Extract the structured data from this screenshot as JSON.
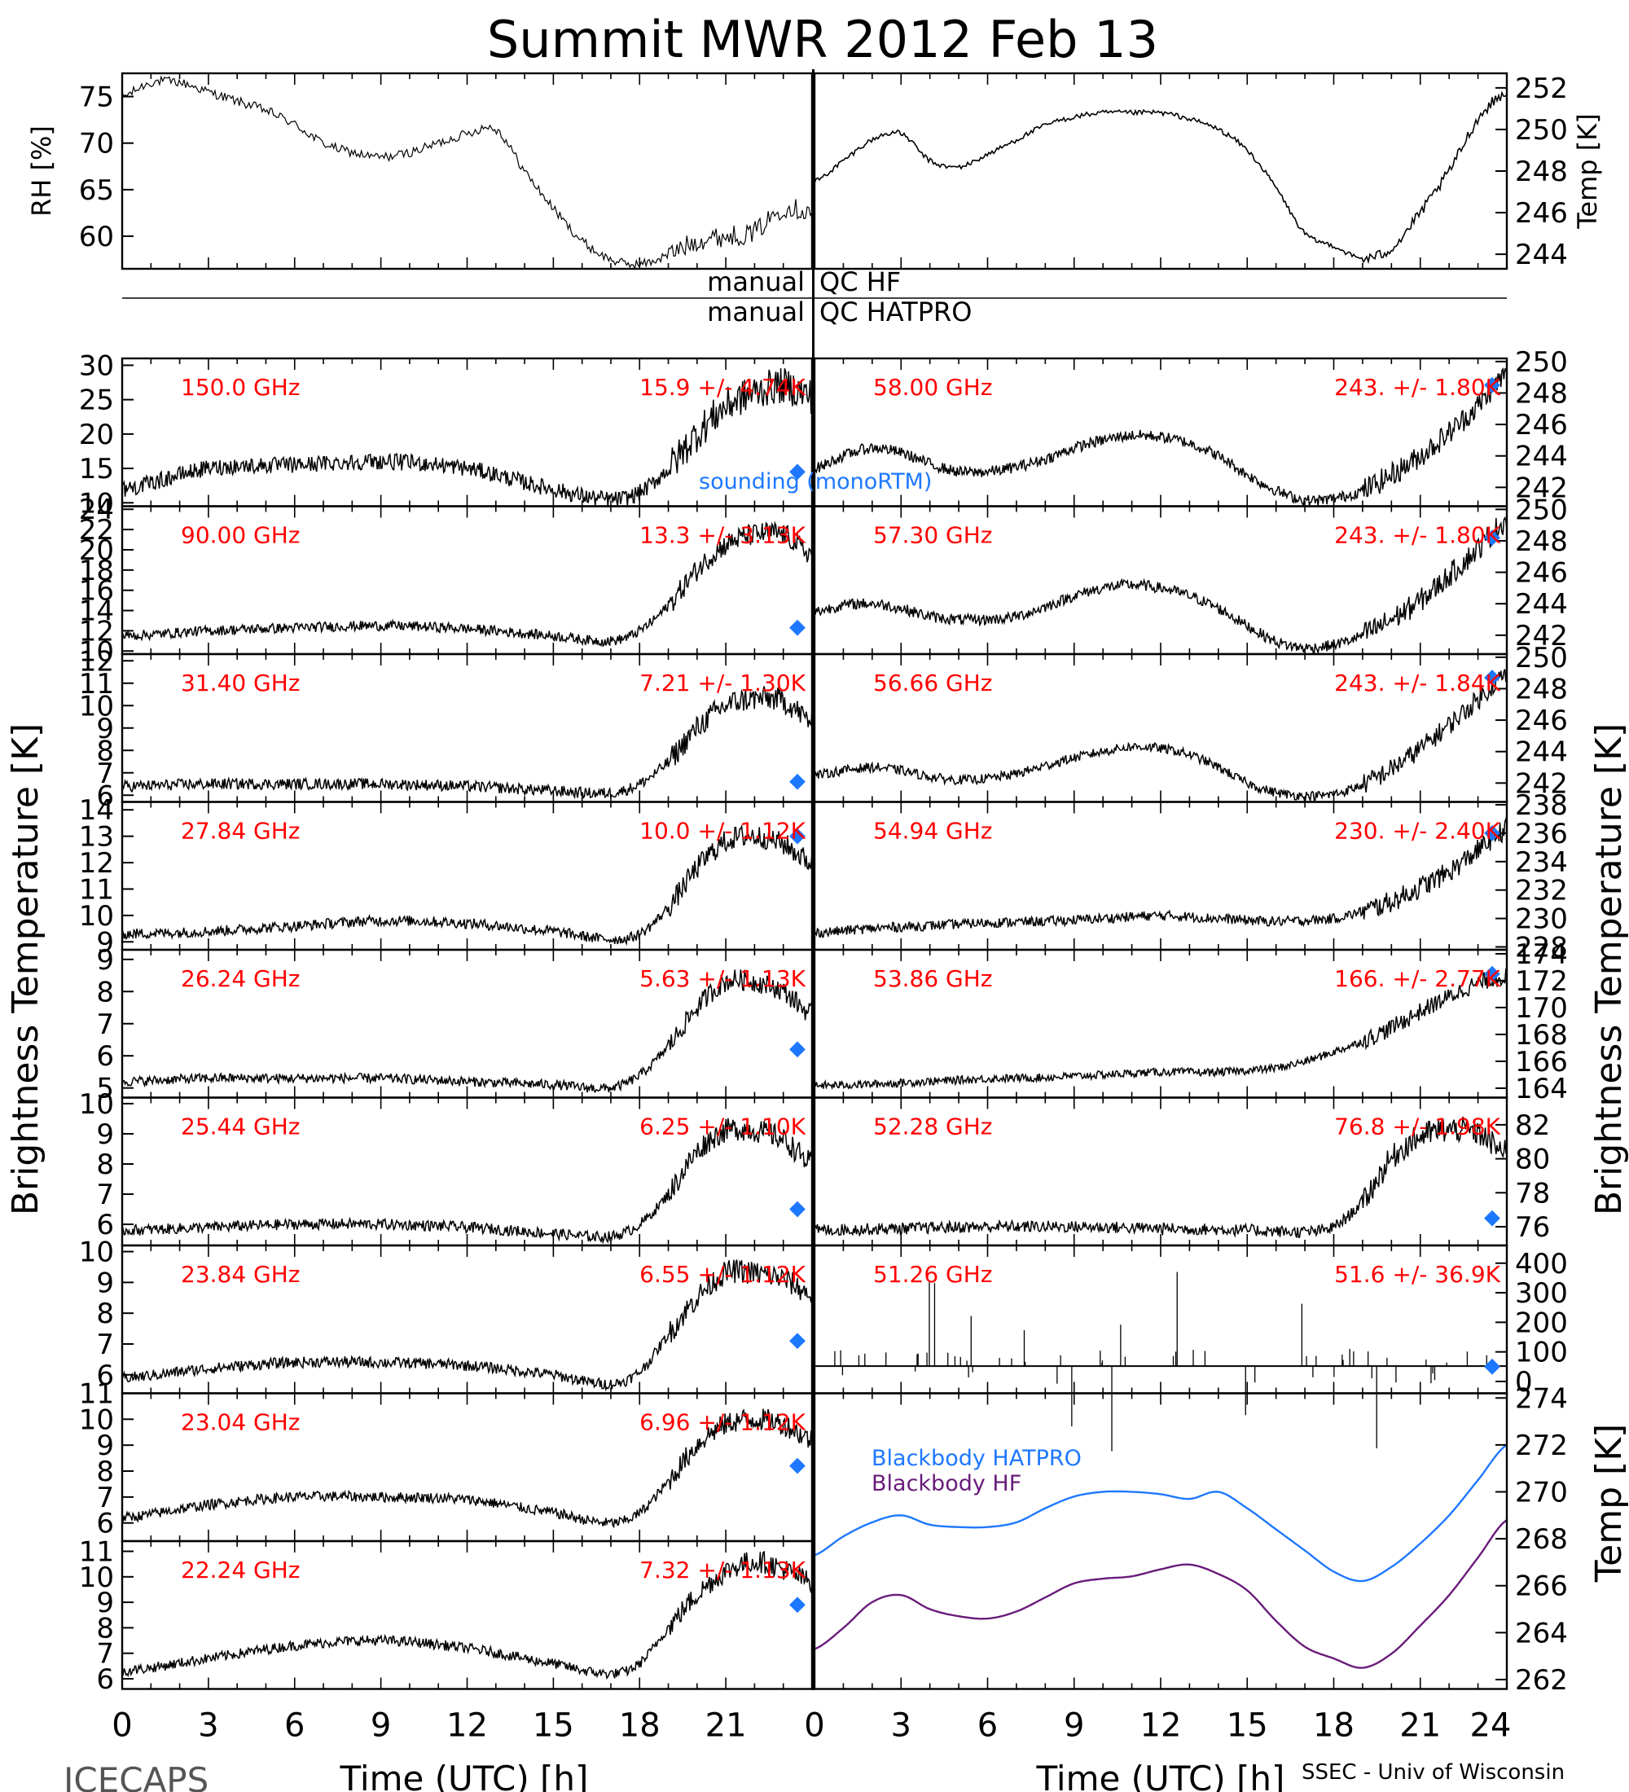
{
  "title": "Summit MWR 2012 Feb 13",
  "footer": {
    "left": "ICECAPS",
    "right": "SSEC - Univ of Wisconsin"
  },
  "qc": {
    "hf": {
      "left": "manual",
      "right": "QC HF"
    },
    "hatpro": {
      "left": "manual",
      "right": "QC HATPRO"
    }
  },
  "side_labels": {
    "left": "Brightness Temperature [K]",
    "right": "Brightness Temperature [K]",
    "right_bottom": "Temp [K]"
  },
  "sounding_label": "sounding (monoRTM)",
  "colors": {
    "trace": "#000000",
    "label": "#ff0000",
    "sounding": "#1e78ff",
    "bb_hatpro": "#1e78ff",
    "bb_hf": "#6a1b7a"
  },
  "chart_data": {
    "type": "line",
    "xlabel": "Time (UTC) [h]",
    "x_ticks": [
      0,
      3,
      6,
      9,
      12,
      15,
      18,
      21,
      24
    ],
    "x_ticks_left_panel": [
      0,
      3,
      6,
      9,
      12,
      15,
      18,
      21
    ],
    "top_panels": [
      {
        "id": "rh",
        "ylabel": "RH [%]",
        "ylim": [
          56.5,
          77.5
        ],
        "yticks": [
          60,
          65,
          70,
          75
        ],
        "series": [
          {
            "x": [
              0,
              1,
              2,
              3,
              4,
              5,
              6,
              7,
              8,
              9,
              10,
              11,
              12,
              13,
              14,
              15,
              16,
              17,
              18,
              19,
              20,
              21,
              22,
              23,
              24
            ],
            "y": [
              75,
              76.5,
              76.5,
              75.5,
              74.5,
              73.5,
              72,
              70,
              69,
              68.5,
              69,
              70,
              71,
              71.5,
              67,
              63,
              59.5,
              57.5,
              57,
              58,
              59.5,
              60,
              60.5,
              63,
              62.5
            ]
          }
        ]
      },
      {
        "id": "temp",
        "ylabel": "Temp [K]",
        "ylim": [
          243.3,
          252.7
        ],
        "yticks": [
          244,
          246,
          248,
          250,
          252
        ],
        "series": [
          {
            "x": [
              0,
              1,
              2,
              3,
              4,
              5,
              6,
              7,
              8,
              9,
              10,
              11,
              12,
              13,
              14,
              15,
              16,
              17,
              18,
              19,
              20,
              21,
              22,
              23,
              24
            ],
            "y": [
              247.5,
              248.5,
              249.5,
              249.8,
              248.5,
              248.2,
              248.8,
              249.5,
              250.2,
              250.6,
              250.8,
              250.8,
              250.8,
              250.5,
              250,
              249,
              247.2,
              245,
              244.4,
              243.8,
              244.3,
              246,
              248,
              250.5,
              251.8
            ]
          }
        ]
      }
    ],
    "channels_left": [
      {
        "freq": "150.0 GHz",
        "stat": "15.9 +/- 4.74K",
        "ylim": [
          9.5,
          31
        ],
        "yticks": [
          10,
          15,
          20,
          25,
          30
        ],
        "sounding": 14.5,
        "x": [
          0,
          3,
          6,
          9,
          12,
          15,
          17,
          18,
          19,
          20,
          21,
          22,
          23,
          24
        ],
        "y": [
          12,
          15,
          15.5,
          16,
          15,
          12,
          10.5,
          11.5,
          15,
          20,
          24,
          26,
          27,
          25.5
        ],
        "noise": 1.2
      },
      {
        "freq": "90.00 GHz",
        "stat": "13.3 +/- 3.13K",
        "ylim": [
          9.7,
          24.3
        ],
        "yticks": [
          10,
          12,
          14,
          16,
          18,
          20,
          22,
          24
        ],
        "sounding": 12.3,
        "x": [
          0,
          3,
          6,
          9,
          12,
          15,
          17,
          18,
          19,
          20,
          21,
          22,
          23,
          24
        ],
        "y": [
          11.5,
          12,
          12.3,
          12.5,
          12.2,
          11.5,
          11,
          12,
          14.5,
          18,
          20.5,
          21.5,
          21.5,
          19.5
        ],
        "noise": 0.5
      },
      {
        "freq": "31.40 GHz",
        "stat": "7.21 +/- 1.30K",
        "ylim": [
          5.7,
          12.3
        ],
        "yticks": [
          6,
          7,
          8,
          9,
          10,
          11,
          12
        ],
        "sounding": 6.6,
        "x": [
          0,
          3,
          6,
          9,
          12,
          15,
          17,
          18,
          19,
          20,
          21,
          22,
          23,
          24
        ],
        "y": [
          6.4,
          6.5,
          6.5,
          6.5,
          6.4,
          6.2,
          6.1,
          6.5,
          7.5,
          9,
          10,
          10.3,
          10.2,
          9.3
        ],
        "noise": 0.25
      },
      {
        "freq": "27.84 GHz",
        "stat": "10.0 +/- 1.12K",
        "ylim": [
          8.7,
          14.3
        ],
        "yticks": [
          9,
          10,
          11,
          12,
          13,
          14
        ],
        "sounding": 13,
        "x": [
          0,
          3,
          6,
          9,
          12,
          15,
          17,
          18,
          19,
          20,
          21,
          22,
          23,
          24
        ],
        "y": [
          9.3,
          9.4,
          9.6,
          9.8,
          9.7,
          9.4,
          9.1,
          9.3,
          10.3,
          11.8,
          12.8,
          13,
          12.7,
          12
        ],
        "noise": 0.2
      },
      {
        "freq": "26.24 GHz",
        "stat": "5.63 +/- 1.13K",
        "ylim": [
          4.7,
          9.3
        ],
        "yticks": [
          5,
          6,
          7,
          8,
          9
        ],
        "sounding": 6.2,
        "x": [
          0,
          3,
          6,
          9,
          12,
          15,
          17,
          18,
          19,
          20,
          21,
          22,
          23,
          24
        ],
        "y": [
          5.2,
          5.3,
          5.3,
          5.3,
          5.2,
          5.1,
          5,
          5.4,
          6.3,
          7.5,
          8.3,
          8.3,
          8,
          7.3
        ],
        "noise": 0.15
      },
      {
        "freq": "25.44 GHz",
        "stat": "6.25 +/- 1.10K",
        "ylim": [
          5.3,
          10.2
        ],
        "yticks": [
          6,
          7,
          8,
          9,
          10
        ],
        "sounding": 6.5,
        "x": [
          0,
          3,
          6,
          9,
          12,
          15,
          17,
          18,
          19,
          20,
          21,
          22,
          23,
          24
        ],
        "y": [
          5.8,
          5.9,
          6,
          6,
          5.9,
          5.7,
          5.6,
          6,
          7,
          8.4,
          9.1,
          9.1,
          8.8,
          8
        ],
        "noise": 0.18
      },
      {
        "freq": "23.84 GHz",
        "stat": "6.55 +/- 1.12K",
        "ylim": [
          5.4,
          10.2
        ],
        "yticks": [
          6,
          7,
          8,
          9,
          10
        ],
        "sounding": 7.1,
        "x": [
          0,
          3,
          6,
          9,
          12,
          15,
          17,
          18,
          19,
          20,
          21,
          22,
          23,
          24
        ],
        "y": [
          5.9,
          6.2,
          6.4,
          6.4,
          6.3,
          6,
          5.7,
          6.1,
          7.3,
          8.5,
          9.3,
          9.3,
          9.1,
          8.6
        ],
        "noise": 0.18
      },
      {
        "freq": "23.04 GHz",
        "stat": "6.96 +/- 1.12K",
        "ylim": [
          5.3,
          11
        ],
        "yticks": [
          6,
          7,
          8,
          9,
          10,
          11
        ],
        "sounding": 8.2,
        "x": [
          0,
          3,
          6,
          9,
          12,
          15,
          17,
          18,
          19,
          20,
          21,
          22,
          23,
          24
        ],
        "y": [
          6.2,
          6.7,
          7,
          7,
          6.9,
          6.4,
          6,
          6.4,
          7.6,
          9,
          9.8,
          10,
          9.8,
          9.2
        ],
        "noise": 0.2
      },
      {
        "freq": "22.24 GHz",
        "stat": "7.32 +/- 1.13K",
        "ylim": [
          5.6,
          11.4
        ],
        "yticks": [
          6,
          7,
          8,
          9,
          10,
          11
        ],
        "sounding": 8.9,
        "x": [
          0,
          3,
          6,
          9,
          12,
          15,
          17,
          18,
          19,
          20,
          21,
          22,
          23,
          24
        ],
        "y": [
          6.3,
          6.8,
          7.3,
          7.5,
          7.2,
          6.6,
          6.2,
          6.6,
          8,
          9.3,
          10.2,
          10.6,
          10.3,
          9.8
        ],
        "noise": 0.2
      }
    ],
    "channels_right": [
      {
        "freq": "58.00 GHz",
        "stat": "243. +/- 1.80K",
        "ylim": [
          240.8,
          250.2
        ],
        "yticks": [
          242,
          244,
          246,
          248,
          250
        ],
        "sounding": 248.5,
        "x": [
          0,
          1,
          2,
          3,
          4,
          5,
          6,
          7,
          8,
          9,
          10,
          11,
          12,
          13,
          14,
          15,
          16,
          17,
          18,
          19,
          20,
          21,
          22,
          23,
          24
        ],
        "y": [
          243.2,
          244,
          244.5,
          244.2,
          243.5,
          243,
          243,
          243.3,
          243.8,
          244.5,
          245,
          245.3,
          245.2,
          244.8,
          244,
          242.8,
          241.8,
          241.2,
          241.3,
          241.8,
          242.8,
          244,
          245.5,
          247.2,
          249.2
        ],
        "noise": 0.35
      },
      {
        "freq": "57.30 GHz",
        "stat": "243. +/- 1.80K",
        "ylim": [
          240.8,
          250.2
        ],
        "yticks": [
          242,
          244,
          246,
          248,
          250
        ],
        "sounding": 248.2,
        "x": [
          0,
          1,
          2,
          3,
          4,
          5,
          6,
          7,
          8,
          9,
          10,
          11,
          12,
          13,
          14,
          15,
          16,
          17,
          18,
          19,
          20,
          21,
          22,
          23,
          24
        ],
        "y": [
          243.5,
          243.9,
          244,
          243.7,
          243.2,
          243,
          243,
          243.2,
          243.8,
          244.5,
          245,
          245.2,
          245,
          244.5,
          243.7,
          242.6,
          241.6,
          241.2,
          241.4,
          242,
          243,
          244.2,
          245.8,
          247.5,
          249.3
        ],
        "noise": 0.35
      },
      {
        "freq": "56.66 GHz",
        "stat": "243. +/- 1.84K",
        "ylim": [
          240.8,
          250.2
        ],
        "yticks": [
          242,
          244,
          246,
          248,
          250
        ],
        "sounding": 248.7,
        "x": [
          0,
          1,
          2,
          3,
          4,
          5,
          6,
          7,
          8,
          9,
          10,
          11,
          12,
          13,
          14,
          15,
          16,
          17,
          18,
          19,
          20,
          21,
          22,
          23,
          24
        ],
        "y": [
          242.5,
          242.8,
          243,
          242.8,
          242.4,
          242.2,
          242.3,
          242.6,
          243.1,
          243.6,
          244,
          244.3,
          244.2,
          243.8,
          243,
          242,
          241.4,
          241.2,
          241.3,
          241.9,
          242.9,
          244.2,
          245.7,
          247.3,
          248.9
        ],
        "noise": 0.3
      },
      {
        "freq": "54.94 GHz",
        "stat": "230. +/- 2.40K",
        "ylim": [
          227.8,
          238.2
        ],
        "yticks": [
          228,
          230,
          232,
          234,
          236,
          238
        ],
        "sounding": 236,
        "x": [
          0,
          2,
          4,
          6,
          8,
          10,
          12,
          14,
          16,
          18,
          19,
          20,
          21,
          22,
          23,
          24
        ],
        "y": [
          229,
          229.3,
          229.5,
          229.7,
          229.8,
          230,
          230.2,
          230,
          229.8,
          230,
          230.5,
          231.2,
          232.2,
          233.3,
          234.8,
          236.3
        ],
        "noise": 0.35
      },
      {
        "freq": "53.86 GHz",
        "stat": "166. +/- 2.77K",
        "ylim": [
          163.3,
          174.3
        ],
        "yticks": [
          164,
          166,
          168,
          170,
          172,
          174
        ],
        "sounding": 172.5,
        "x": [
          0,
          2,
          4,
          6,
          8,
          10,
          12,
          14,
          16,
          17,
          18,
          19,
          20,
          21,
          22,
          23,
          24
        ],
        "y": [
          164.2,
          164.3,
          164.5,
          164.7,
          164.8,
          165,
          165.2,
          165.2,
          165.5,
          166,
          166.7,
          167.5,
          168.5,
          169.7,
          170.8,
          171.8,
          172.3
        ],
        "noise": 0.3
      },
      {
        "freq": "52.28 GHz",
        "stat": "76.8 +/- 1.98K",
        "ylim": [
          74.9,
          83.6
        ],
        "yticks": [
          76,
          78,
          80,
          82
        ],
        "sounding": 76.5,
        "x": [
          0,
          3,
          6,
          9,
          12,
          15,
          17,
          18,
          19,
          20,
          21,
          22,
          23,
          24
        ],
        "y": [
          75.8,
          75.9,
          76,
          76,
          75.9,
          75.8,
          75.7,
          76,
          77.5,
          80,
          81.3,
          81.7,
          81.5,
          80.3
        ],
        "noise": 0.35
      },
      {
        "freq": "51.26 GHz",
        "stat": "51.6 +/- 36.9K",
        "ylim": [
          -40,
          460
        ],
        "yticks": [
          0,
          100,
          200,
          300,
          400
        ],
        "sounding": 50,
        "x": [
          0,
          24
        ],
        "y": [
          52,
          52
        ],
        "noise": 0
      }
    ],
    "blackbody": {
      "ylabel": "Temp [K]",
      "ylim": [
        261.6,
        274.2
      ],
      "yticks": [
        262,
        264,
        266,
        268,
        270,
        272,
        274
      ],
      "series": [
        {
          "name": "Blackbody HATPRO",
          "x": [
            0,
            1,
            2,
            3,
            4,
            5,
            6,
            7,
            8,
            9,
            10,
            11,
            12,
            13,
            14,
            15,
            16,
            17,
            18,
            19,
            20,
            21,
            22,
            23,
            24
          ],
          "y": [
            267.3,
            268.1,
            268.7,
            269,
            268.6,
            268.5,
            268.5,
            268.7,
            269.3,
            269.8,
            270,
            270,
            269.9,
            269.7,
            270,
            269.3,
            268.4,
            267.5,
            266.6,
            266.2,
            266.8,
            267.8,
            269,
            270.5,
            272
          ]
        },
        {
          "name": "Blackbody HF",
          "x": [
            0,
            1,
            2,
            3,
            4,
            5,
            6,
            7,
            8,
            9,
            10,
            11,
            12,
            13,
            14,
            15,
            16,
            17,
            18,
            19,
            20,
            21,
            22,
            23,
            24
          ],
          "y": [
            263.3,
            264.2,
            265.3,
            265.6,
            265,
            264.7,
            264.6,
            264.9,
            265.5,
            266.1,
            266.3,
            266.4,
            266.7,
            266.9,
            266.5,
            265.8,
            264.5,
            263.4,
            262.9,
            262.5,
            263.1,
            264.3,
            265.6,
            267.2,
            268.8
          ]
        }
      ]
    }
  }
}
